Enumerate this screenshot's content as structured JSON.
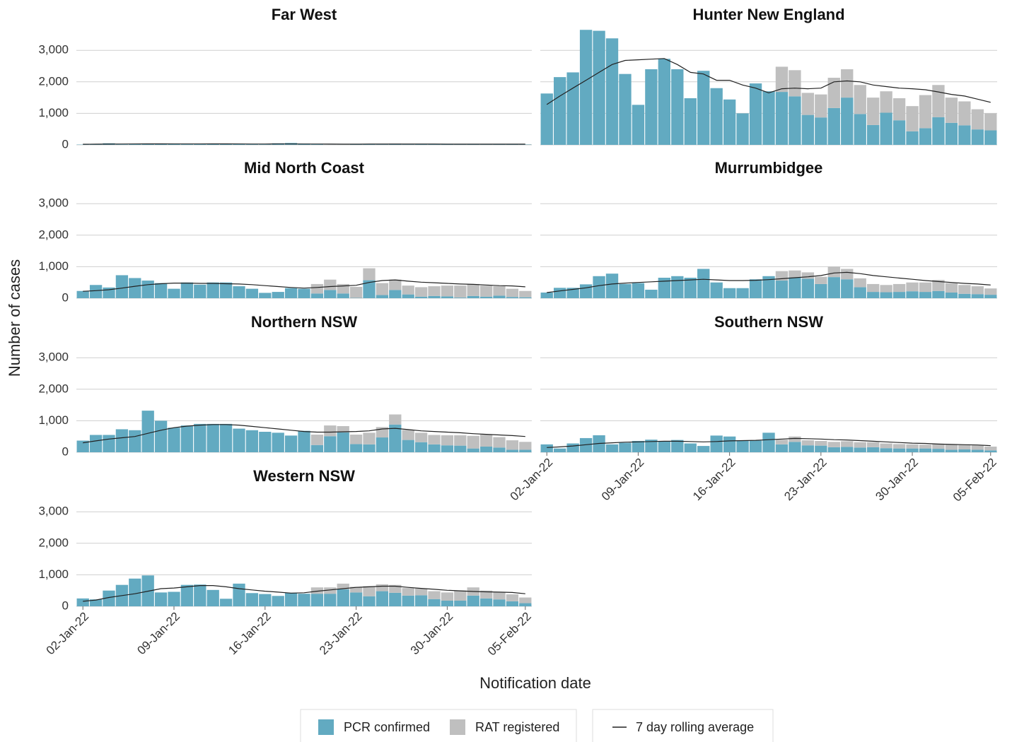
{
  "chart_data": {
    "type": "bar",
    "stacked": true,
    "y_label": "Number of cases",
    "x_label": "Notification date",
    "x": [
      "02-Jan-22",
      "03-Jan-22",
      "04-Jan-22",
      "05-Jan-22",
      "06-Jan-22",
      "07-Jan-22",
      "08-Jan-22",
      "09-Jan-22",
      "10-Jan-22",
      "11-Jan-22",
      "12-Jan-22",
      "13-Jan-22",
      "14-Jan-22",
      "15-Jan-22",
      "16-Jan-22",
      "17-Jan-22",
      "18-Jan-22",
      "19-Jan-22",
      "20-Jan-22",
      "21-Jan-22",
      "22-Jan-22",
      "23-Jan-22",
      "24-Jan-22",
      "25-Jan-22",
      "26-Jan-22",
      "27-Jan-22",
      "28-Jan-22",
      "29-Jan-22",
      "30-Jan-22",
      "31-Jan-22",
      "01-Feb-22",
      "02-Feb-22",
      "03-Feb-22",
      "04-Feb-22",
      "05-Feb-22"
    ],
    "xticks": [
      "02-Jan-22",
      "09-Jan-22",
      "16-Jan-22",
      "23-Jan-22",
      "30-Jan-22",
      "05-Feb-22"
    ],
    "ylim": [
      0,
      3700
    ],
    "yticks": [
      0,
      {
        "value": 1000,
        "label": "1,000"
      },
      {
        "value": 2000,
        "label": "2,000"
      },
      {
        "value": 3000,
        "label": "3,000"
      }
    ],
    "grid": true,
    "series": [
      {
        "name": "PCR confirmed",
        "type": "bar",
        "color": "#62aac1"
      },
      {
        "name": "RAT registered",
        "type": "bar",
        "color": "#bfbfbf"
      },
      {
        "name": "7 day rolling average",
        "type": "line",
        "color": "#222222"
      }
    ],
    "facets": [
      {
        "title": "Far West",
        "values": [
          [
            10,
            20,
            50,
            15,
            30,
            40,
            45,
            40,
            20,
            30,
            30,
            30,
            35,
            20,
            15,
            50,
            60,
            40,
            20,
            5,
            5,
            20,
            20,
            10,
            35,
            10,
            20,
            20,
            15,
            10,
            15,
            10,
            25,
            15,
            10
          ],
          [
            0,
            0,
            0,
            0,
            0,
            0,
            0,
            0,
            0,
            0,
            0,
            0,
            0,
            0,
            0,
            0,
            0,
            0,
            10,
            10,
            5,
            5,
            10,
            10,
            5,
            10,
            5,
            10,
            10,
            10,
            5,
            5,
            5,
            10,
            10
          ],
          [
            20,
            22,
            25,
            28,
            30,
            32,
            32,
            30,
            30,
            30,
            32,
            32,
            30,
            28,
            28,
            30,
            30,
            28,
            26,
            24,
            22,
            22,
            24,
            25,
            25,
            24,
            24,
            24,
            23,
            22,
            22,
            22,
            22,
            22,
            22
          ]
        ]
      },
      {
        "title": "Hunter New England",
        "values": [
          [
            1630,
            2150,
            2300,
            3650,
            3620,
            3380,
            2250,
            1270,
            2400,
            2730,
            2400,
            1480,
            2350,
            1800,
            1440,
            1000,
            1950,
            1700,
            1680,
            1540,
            950,
            870,
            1170,
            1500,
            980,
            630,
            1020,
            780,
            430,
            530,
            880,
            700,
            620,
            490,
            460
          ],
          [
            0,
            0,
            0,
            0,
            0,
            0,
            0,
            0,
            0,
            0,
            0,
            0,
            0,
            0,
            0,
            0,
            0,
            0,
            800,
            830,
            700,
            730,
            960,
            900,
            920,
            870,
            680,
            700,
            800,
            1050,
            1020,
            800,
            760,
            640,
            540
          ],
          [
            1280,
            1550,
            1800,
            2050,
            2300,
            2550,
            2680,
            2700,
            2720,
            2740,
            2550,
            2300,
            2250,
            2050,
            2050,
            1900,
            1800,
            1650,
            1780,
            1800,
            1780,
            1800,
            2000,
            2030,
            2000,
            1900,
            1850,
            1800,
            1780,
            1750,
            1680,
            1600,
            1550,
            1450,
            1350
          ]
        ]
      },
      {
        "title": "Mid North Coast",
        "values": [
          [
            230,
            420,
            340,
            730,
            640,
            560,
            480,
            300,
            500,
            430,
            500,
            500,
            380,
            300,
            170,
            200,
            320,
            300,
            150,
            260,
            150,
            10,
            570,
            100,
            260,
            120,
            50,
            70,
            60,
            20,
            70,
            50,
            80,
            40,
            30
          ],
          [
            0,
            0,
            0,
            0,
            0,
            0,
            0,
            0,
            0,
            0,
            0,
            0,
            0,
            0,
            0,
            0,
            0,
            0,
            300,
            330,
            300,
            350,
            380,
            380,
            330,
            280,
            300,
            310,
            340,
            380,
            380,
            350,
            300,
            260,
            200
          ],
          [
            220,
            240,
            270,
            320,
            380,
            430,
            460,
            480,
            480,
            470,
            470,
            460,
            450,
            430,
            400,
            370,
            340,
            320,
            340,
            370,
            390,
            410,
            500,
            560,
            580,
            540,
            510,
            490,
            470,
            450,
            440,
            420,
            400,
            390,
            360
          ]
        ]
      },
      {
        "title": "Murrumbidgee",
        "values": [
          [
            180,
            330,
            330,
            440,
            700,
            780,
            450,
            480,
            270,
            650,
            700,
            650,
            930,
            500,
            320,
            320,
            600,
            700,
            560,
            660,
            620,
            450,
            670,
            600,
            350,
            200,
            190,
            200,
            220,
            200,
            230,
            180,
            140,
            130,
            110
          ],
          [
            0,
            0,
            0,
            0,
            0,
            0,
            0,
            0,
            0,
            0,
            0,
            0,
            0,
            0,
            0,
            0,
            0,
            0,
            300,
            220,
            200,
            230,
            330,
            330,
            280,
            250,
            230,
            250,
            280,
            300,
            350,
            300,
            280,
            250,
            200
          ],
          [
            180,
            230,
            280,
            330,
            400,
            450,
            480,
            500,
            520,
            540,
            560,
            580,
            600,
            580,
            560,
            560,
            570,
            590,
            620,
            650,
            680,
            720,
            800,
            820,
            780,
            720,
            680,
            640,
            600,
            560,
            530,
            500,
            470,
            450,
            420
          ]
        ]
      },
      {
        "title": "Northern NSW",
        "values": [
          [
            370,
            550,
            550,
            730,
            700,
            1320,
            1000,
            780,
            850,
            900,
            900,
            900,
            750,
            700,
            650,
            620,
            530,
            680,
            230,
            510,
            630,
            260,
            250,
            470,
            880,
            390,
            320,
            250,
            220,
            210,
            120,
            180,
            150,
            80,
            80
          ],
          [
            0,
            0,
            0,
            0,
            0,
            0,
            0,
            0,
            0,
            0,
            0,
            0,
            0,
            0,
            0,
            0,
            0,
            0,
            330,
            340,
            200,
            300,
            370,
            330,
            320,
            320,
            300,
            300,
            320,
            330,
            400,
            380,
            330,
            300,
            250
          ],
          [
            300,
            360,
            420,
            460,
            500,
            600,
            700,
            780,
            830,
            860,
            880,
            880,
            860,
            820,
            780,
            740,
            700,
            660,
            640,
            640,
            650,
            660,
            680,
            740,
            760,
            720,
            680,
            660,
            640,
            620,
            590,
            570,
            550,
            530,
            500
          ]
        ]
      },
      {
        "title": "Southern NSW",
        "values": [
          [
            250,
            120,
            280,
            450,
            540,
            250,
            300,
            360,
            400,
            350,
            390,
            280,
            200,
            530,
            500,
            380,
            370,
            620,
            250,
            330,
            220,
            210,
            160,
            170,
            150,
            160,
            130,
            120,
            120,
            120,
            110,
            80,
            90,
            80,
            60
          ],
          [
            0,
            0,
            0,
            0,
            0,
            0,
            0,
            0,
            0,
            0,
            0,
            0,
            0,
            0,
            0,
            0,
            0,
            0,
            150,
            170,
            160,
            150,
            170,
            180,
            170,
            160,
            150,
            140,
            130,
            120,
            150,
            160,
            140,
            140,
            120
          ],
          [
            150,
            170,
            200,
            240,
            280,
            300,
            320,
            330,
            340,
            350,
            350,
            340,
            330,
            340,
            360,
            370,
            380,
            400,
            420,
            440,
            430,
            420,
            400,
            390,
            370,
            350,
            330,
            310,
            290,
            280,
            260,
            250,
            240,
            230,
            210
          ]
        ]
      },
      {
        "title": "Western NSW",
        "values": [
          [
            250,
            220,
            500,
            680,
            880,
            980,
            440,
            460,
            680,
            690,
            520,
            240,
            720,
            420,
            390,
            330,
            430,
            400,
            400,
            400,
            540,
            440,
            320,
            480,
            430,
            340,
            350,
            230,
            180,
            180,
            340,
            250,
            220,
            160,
            100
          ],
          [
            0,
            0,
            0,
            0,
            0,
            0,
            0,
            0,
            0,
            0,
            0,
            0,
            0,
            0,
            0,
            0,
            0,
            0,
            200,
            200,
            180,
            180,
            320,
            220,
            250,
            240,
            220,
            250,
            260,
            320,
            260,
            250,
            230,
            220,
            180
          ],
          [
            160,
            200,
            280,
            340,
            400,
            480,
            560,
            580,
            620,
            660,
            660,
            620,
            560,
            520,
            480,
            450,
            420,
            430,
            480,
            520,
            560,
            600,
            620,
            640,
            640,
            600,
            570,
            540,
            510,
            490,
            470,
            460,
            450,
            440,
            400
          ]
        ]
      }
    ]
  }
}
